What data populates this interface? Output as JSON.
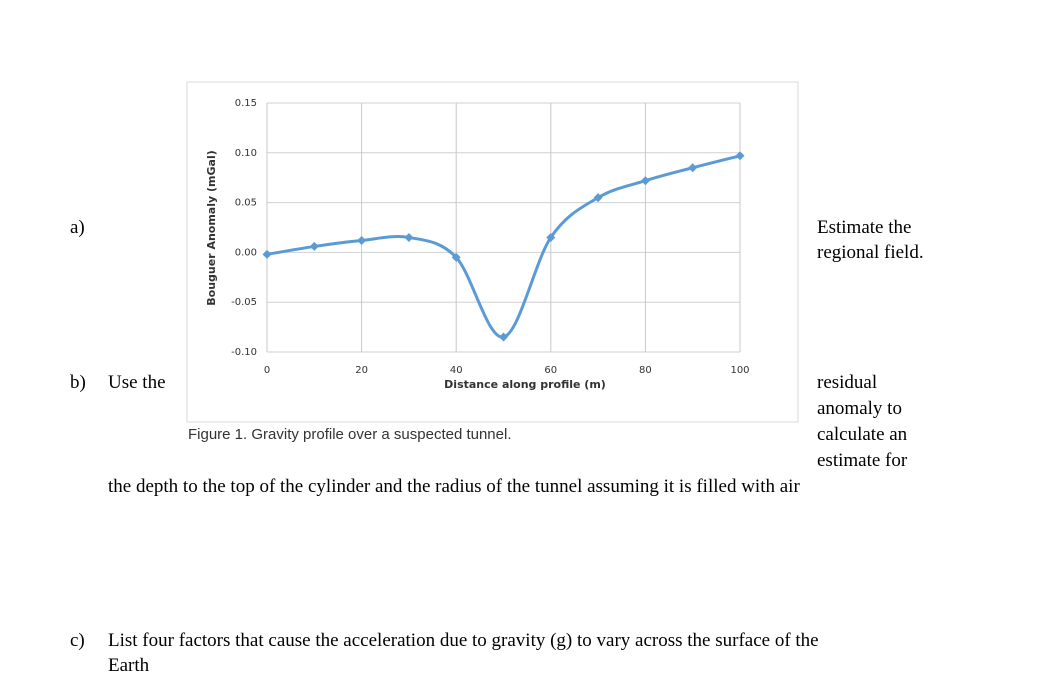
{
  "chart_data": {
    "type": "line",
    "caption": "Figure 1. Gravity profile over a suspected tunnel.",
    "x_label": "Distance along profile (m)",
    "y_label": "Bouguer Anomaly (mGal)",
    "x": [
      0,
      10,
      20,
      30,
      40,
      50,
      60,
      70,
      80,
      90,
      100
    ],
    "values": [
      -0.002,
      0.006,
      0.012,
      0.015,
      -0.005,
      -0.085,
      0.015,
      0.055,
      0.072,
      0.085,
      0.097
    ],
    "color": "#5b9bd5",
    "xlim": [
      0,
      100
    ],
    "xticks": [
      0,
      20,
      40,
      60,
      80,
      100
    ],
    "ylim": [
      -0.1,
      0.15
    ],
    "yticks": [
      {
        "value": 0.15,
        "label": "0.15"
      },
      {
        "value": 0.1,
        "label": "0.10"
      },
      {
        "value": 0.05,
        "label": "0.05"
      },
      {
        "value": 0,
        "label": "0.00"
      },
      {
        "value": -0.05,
        "label": "-0.05"
      },
      {
        "value": -0.1,
        "label": "-0.10"
      }
    ],
    "grid": true
  },
  "document": {
    "part_a": {
      "label": "a)",
      "lines": [
        "Estimate the",
        "regional field."
      ]
    },
    "part_b": {
      "label": "b)",
      "lead": "Use the",
      "lines": [
        "residual",
        "anomaly to",
        "calculate an",
        "estimate for"
      ],
      "tail": "the depth to the top of the cylinder and the radius of the tunnel assuming it is filled with air"
    },
    "part_c": {
      "label": "c)",
      "lines": [
        "List four factors that cause the acceleration due to gravity (g) to vary across the surface of the",
        "Earth"
      ]
    }
  }
}
